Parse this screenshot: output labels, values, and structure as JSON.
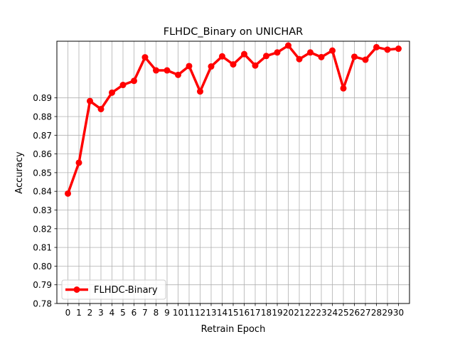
{
  "chart_data": {
    "type": "line",
    "title": "FLHDC_Binary on UNICHAR",
    "xlabel": "Retrain Epoch",
    "ylabel": "Accuracy",
    "x": [
      0,
      1,
      2,
      3,
      4,
      5,
      6,
      7,
      8,
      9,
      10,
      11,
      12,
      13,
      14,
      15,
      16,
      17,
      18,
      19,
      20,
      21,
      22,
      23,
      24,
      25,
      26,
      27,
      28,
      29,
      30
    ],
    "x_tick_labels": [
      "0",
      "1",
      "2",
      "3",
      "4",
      "5",
      "6",
      "7",
      "8",
      "9",
      "10",
      "11",
      "12",
      "13",
      "14",
      "15",
      "16",
      "17",
      "18",
      "19",
      "20",
      "21",
      "22",
      "23",
      "24",
      "25",
      "26",
      "27",
      "28",
      "29",
      "30"
    ],
    "y_ticks": [
      0.78,
      0.79,
      0.8,
      0.81,
      0.82,
      0.83,
      0.84,
      0.85,
      0.86,
      0.87,
      0.88,
      0.89
    ],
    "y_tick_labels": [
      "0.78",
      "0.79",
      "0.80",
      "0.81",
      "0.82",
      "0.83",
      "0.84",
      "0.85",
      "0.86",
      "0.87",
      "0.88",
      "0.89"
    ],
    "xlim": [
      -1,
      31
    ],
    "ylim": [
      0.78,
      0.9203
    ],
    "grid": true,
    "legend_position": "lower-left",
    "series": [
      {
        "name": "FLHDC-Binary",
        "color": "#ff0000",
        "marker": "circle",
        "values": [
          0.8388,
          0.8553,
          0.8883,
          0.884,
          0.8928,
          0.8969,
          0.8991,
          0.9117,
          0.9047,
          0.9047,
          0.9023,
          0.907,
          0.8934,
          0.9068,
          0.9122,
          0.9079,
          0.9134,
          0.9073,
          0.9124,
          0.9143,
          0.918,
          0.9107,
          0.9143,
          0.9118,
          0.9153,
          0.8951,
          0.912,
          0.9104,
          0.9171,
          0.9158,
          0.9163
        ]
      }
    ]
  }
}
